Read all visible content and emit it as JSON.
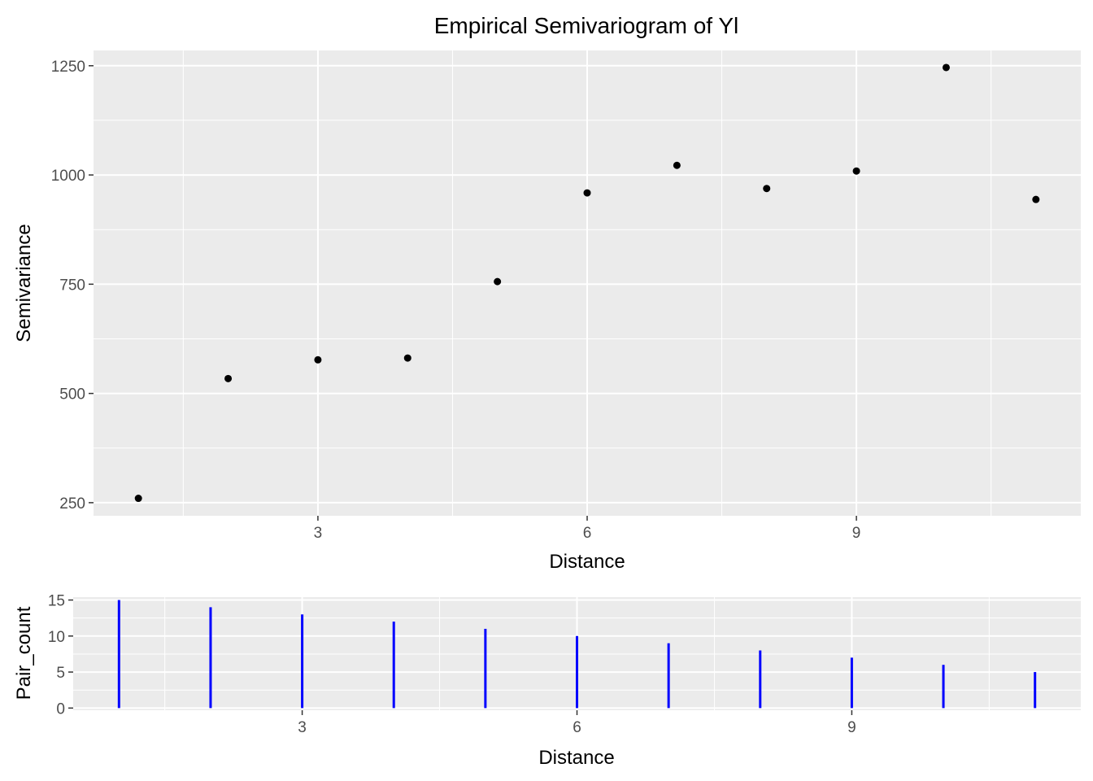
{
  "chart_data": [
    {
      "type": "scatter",
      "title": "Empirical Semivariogram of Yl",
      "xlabel": "Distance",
      "ylabel": "Semivariance",
      "x": [
        1,
        2,
        3,
        4,
        5,
        6,
        7,
        8,
        9,
        10,
        11
      ],
      "y": [
        260,
        534,
        577,
        581,
        756,
        959,
        1022,
        969,
        1009,
        1246,
        944
      ],
      "xlim": [
        0.5,
        11.5
      ],
      "ylim": [
        220,
        1285
      ],
      "x_ticks": [
        3,
        6,
        9
      ],
      "y_ticks": [
        250,
        500,
        750,
        1000,
        1250
      ],
      "point_color": "#000000",
      "grid": true
    },
    {
      "type": "bar",
      "title": "",
      "xlabel": "Distance",
      "ylabel": "Pair_count",
      "x": [
        1,
        2,
        3,
        4,
        5,
        6,
        7,
        8,
        9,
        10,
        11
      ],
      "y": [
        15,
        14,
        13,
        12,
        11,
        10,
        9,
        8,
        7,
        6,
        5
      ],
      "xlim": [
        0.5,
        11.5
      ],
      "ylim": [
        -0.3,
        15.4
      ],
      "x_ticks": [
        3,
        6,
        9
      ],
      "y_ticks": [
        0,
        5,
        10,
        15
      ],
      "bar_color": "#0000FF",
      "grid": true
    }
  ]
}
